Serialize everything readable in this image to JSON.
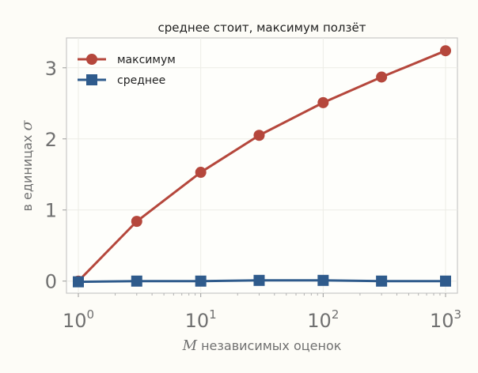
{
  "chart_data": {
    "type": "line",
    "title": "среднее стоит, максимум ползёт",
    "xlabel_var": "M",
    "xlabel_rest": " независимых оценок",
    "ylabel_text": "в единицах ",
    "ylabel_sym": "σ",
    "x_scale": "log",
    "x": [
      1,
      3,
      10,
      30,
      100,
      300,
      1000
    ],
    "xlim": [
      0.8,
      1250
    ],
    "ylim": [
      -0.17,
      3.42
    ],
    "x_ticks": [
      {
        "value": 1,
        "base": "10",
        "exp": "0"
      },
      {
        "value": 10,
        "base": "10",
        "exp": "1"
      },
      {
        "value": 100,
        "base": "10",
        "exp": "2"
      },
      {
        "value": 1000,
        "base": "10",
        "exp": "3"
      }
    ],
    "y_ticks": [
      {
        "value": 0,
        "label": "0"
      },
      {
        "value": 1,
        "label": "1"
      },
      {
        "value": 2,
        "label": "2"
      },
      {
        "value": 3,
        "label": "3"
      }
    ],
    "grid": true,
    "legend_position": "top-left",
    "series": [
      {
        "name": "максимум",
        "marker": "circle",
        "color": "#b5473c",
        "values": [
          0.0,
          0.84,
          1.53,
          2.05,
          2.51,
          2.87,
          3.24
        ]
      },
      {
        "name": "среднее",
        "marker": "square",
        "color": "#2f5b8c",
        "values": [
          -0.01,
          0.0,
          0.0,
          0.01,
          0.01,
          0.0,
          0.0
        ]
      }
    ]
  }
}
